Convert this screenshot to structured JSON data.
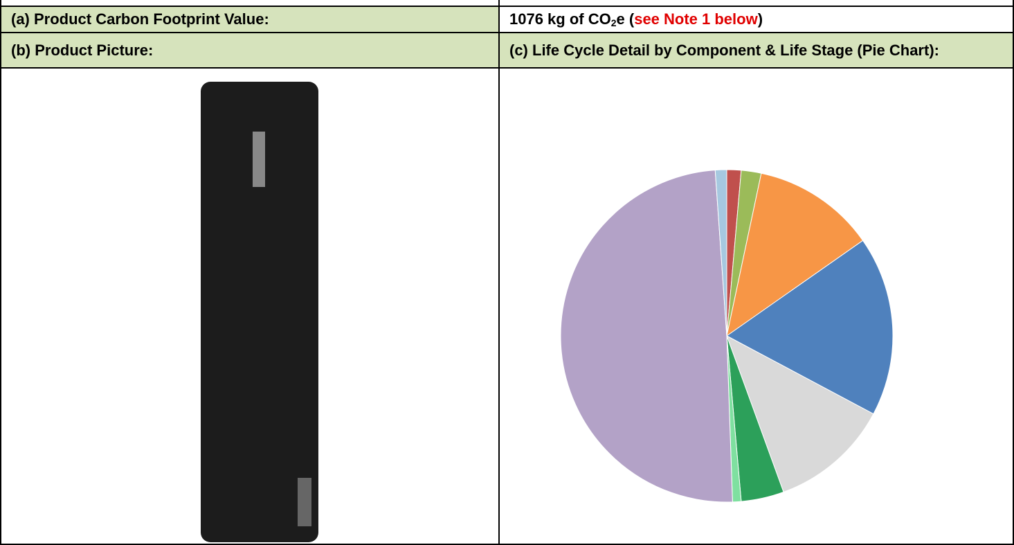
{
  "row_a": {
    "label": "(a) Product Carbon Footprint Value:",
    "value_parts": [
      "1076 kg of CO",
      "2",
      "e (",
      "see Note 1 below",
      ")"
    ]
  },
  "row_b": {
    "left": "(b) Product Picture:",
    "right": "(c) Life Cycle Detail by Component & Life Stage (Pie Chart):"
  }
}
